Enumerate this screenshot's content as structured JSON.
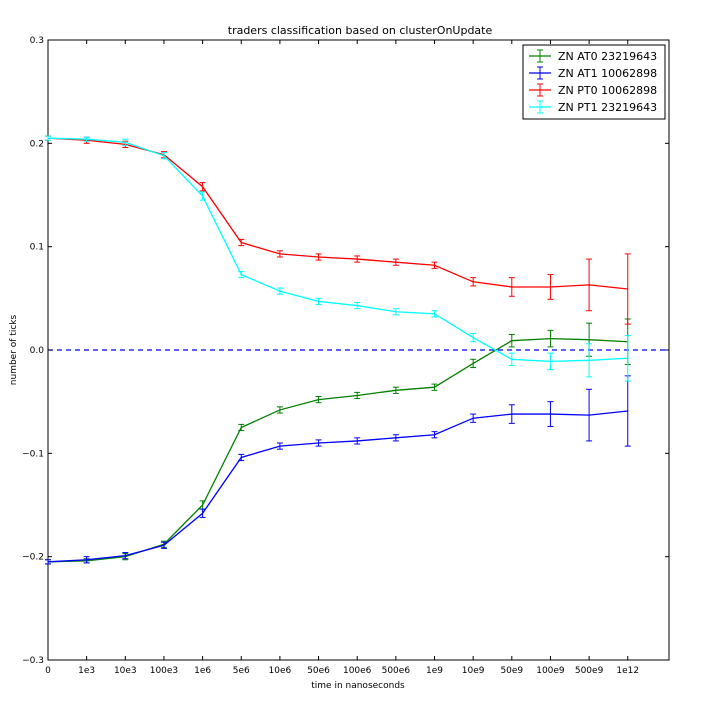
{
  "chart_data": {
    "type": "line",
    "title": "traders classification based on clusterOnUpdate",
    "xlabel": "time in nanoseconds",
    "ylabel": "number of ticks",
    "categories": [
      "0",
      "1e3",
      "10e3",
      "100e3",
      "1e6",
      "5e6",
      "10e6",
      "50e6",
      "100e6",
      "500e6",
      "1e9",
      "10e9",
      "50e9",
      "100e9",
      "500e9",
      "1e12"
    ],
    "ylim": [
      -0.3,
      0.3
    ],
    "yticks": [
      "0.3",
      "0.2",
      "0.1",
      "0.0",
      "−0.1",
      "−0.2",
      "−0.3"
    ],
    "ytick_values": [
      0.3,
      0.2,
      0.1,
      0.0,
      -0.1,
      -0.2,
      -0.3
    ],
    "legend_position": "top-right",
    "reference_line": {
      "y": 0.0,
      "color": "#0000ff",
      "style": "dashed"
    },
    "series": [
      {
        "name": "ZN AT0 23219643",
        "color": "#008000",
        "values": [
          -0.205,
          -0.204,
          -0.2,
          -0.188,
          -0.15,
          -0.075,
          -0.058,
          -0.048,
          -0.044,
          -0.039,
          -0.036,
          -0.013,
          0.009,
          0.011,
          0.01,
          0.008
        ],
        "errors": [
          0.002,
          0.002,
          0.003,
          0.003,
          0.004,
          0.003,
          0.003,
          0.003,
          0.003,
          0.003,
          0.003,
          0.004,
          0.006,
          0.008,
          0.016,
          0.022
        ]
      },
      {
        "name": "ZN AT1 10062898",
        "color": "#0000ff",
        "values": [
          -0.205,
          -0.203,
          -0.199,
          -0.189,
          -0.158,
          -0.104,
          -0.093,
          -0.09,
          -0.088,
          -0.085,
          -0.082,
          -0.066,
          -0.062,
          -0.062,
          -0.063,
          -0.059
        ],
        "errors": [
          0.002,
          0.003,
          0.003,
          0.003,
          0.004,
          0.003,
          0.003,
          0.003,
          0.003,
          0.003,
          0.003,
          0.004,
          0.009,
          0.012,
          0.025,
          0.034
        ]
      },
      {
        "name": "ZN PT0 10062898",
        "color": "#ff0000",
        "values": [
          0.205,
          0.203,
          0.199,
          0.189,
          0.158,
          0.104,
          0.093,
          0.09,
          0.088,
          0.085,
          0.082,
          0.066,
          0.061,
          0.061,
          0.063,
          0.059
        ],
        "errors": [
          0.002,
          0.003,
          0.003,
          0.003,
          0.004,
          0.003,
          0.003,
          0.003,
          0.003,
          0.003,
          0.003,
          0.004,
          0.009,
          0.012,
          0.025,
          0.034
        ]
      },
      {
        "name": "ZN PT1 23219643",
        "color": "#00ffff",
        "values": [
          0.205,
          0.204,
          0.201,
          0.188,
          0.149,
          0.073,
          0.057,
          0.047,
          0.043,
          0.037,
          0.035,
          0.012,
          -0.009,
          -0.011,
          -0.01,
          -0.008
        ],
        "errors": [
          0.002,
          0.002,
          0.003,
          0.003,
          0.004,
          0.003,
          0.003,
          0.003,
          0.003,
          0.003,
          0.003,
          0.004,
          0.006,
          0.008,
          0.016,
          0.022
        ]
      }
    ]
  }
}
